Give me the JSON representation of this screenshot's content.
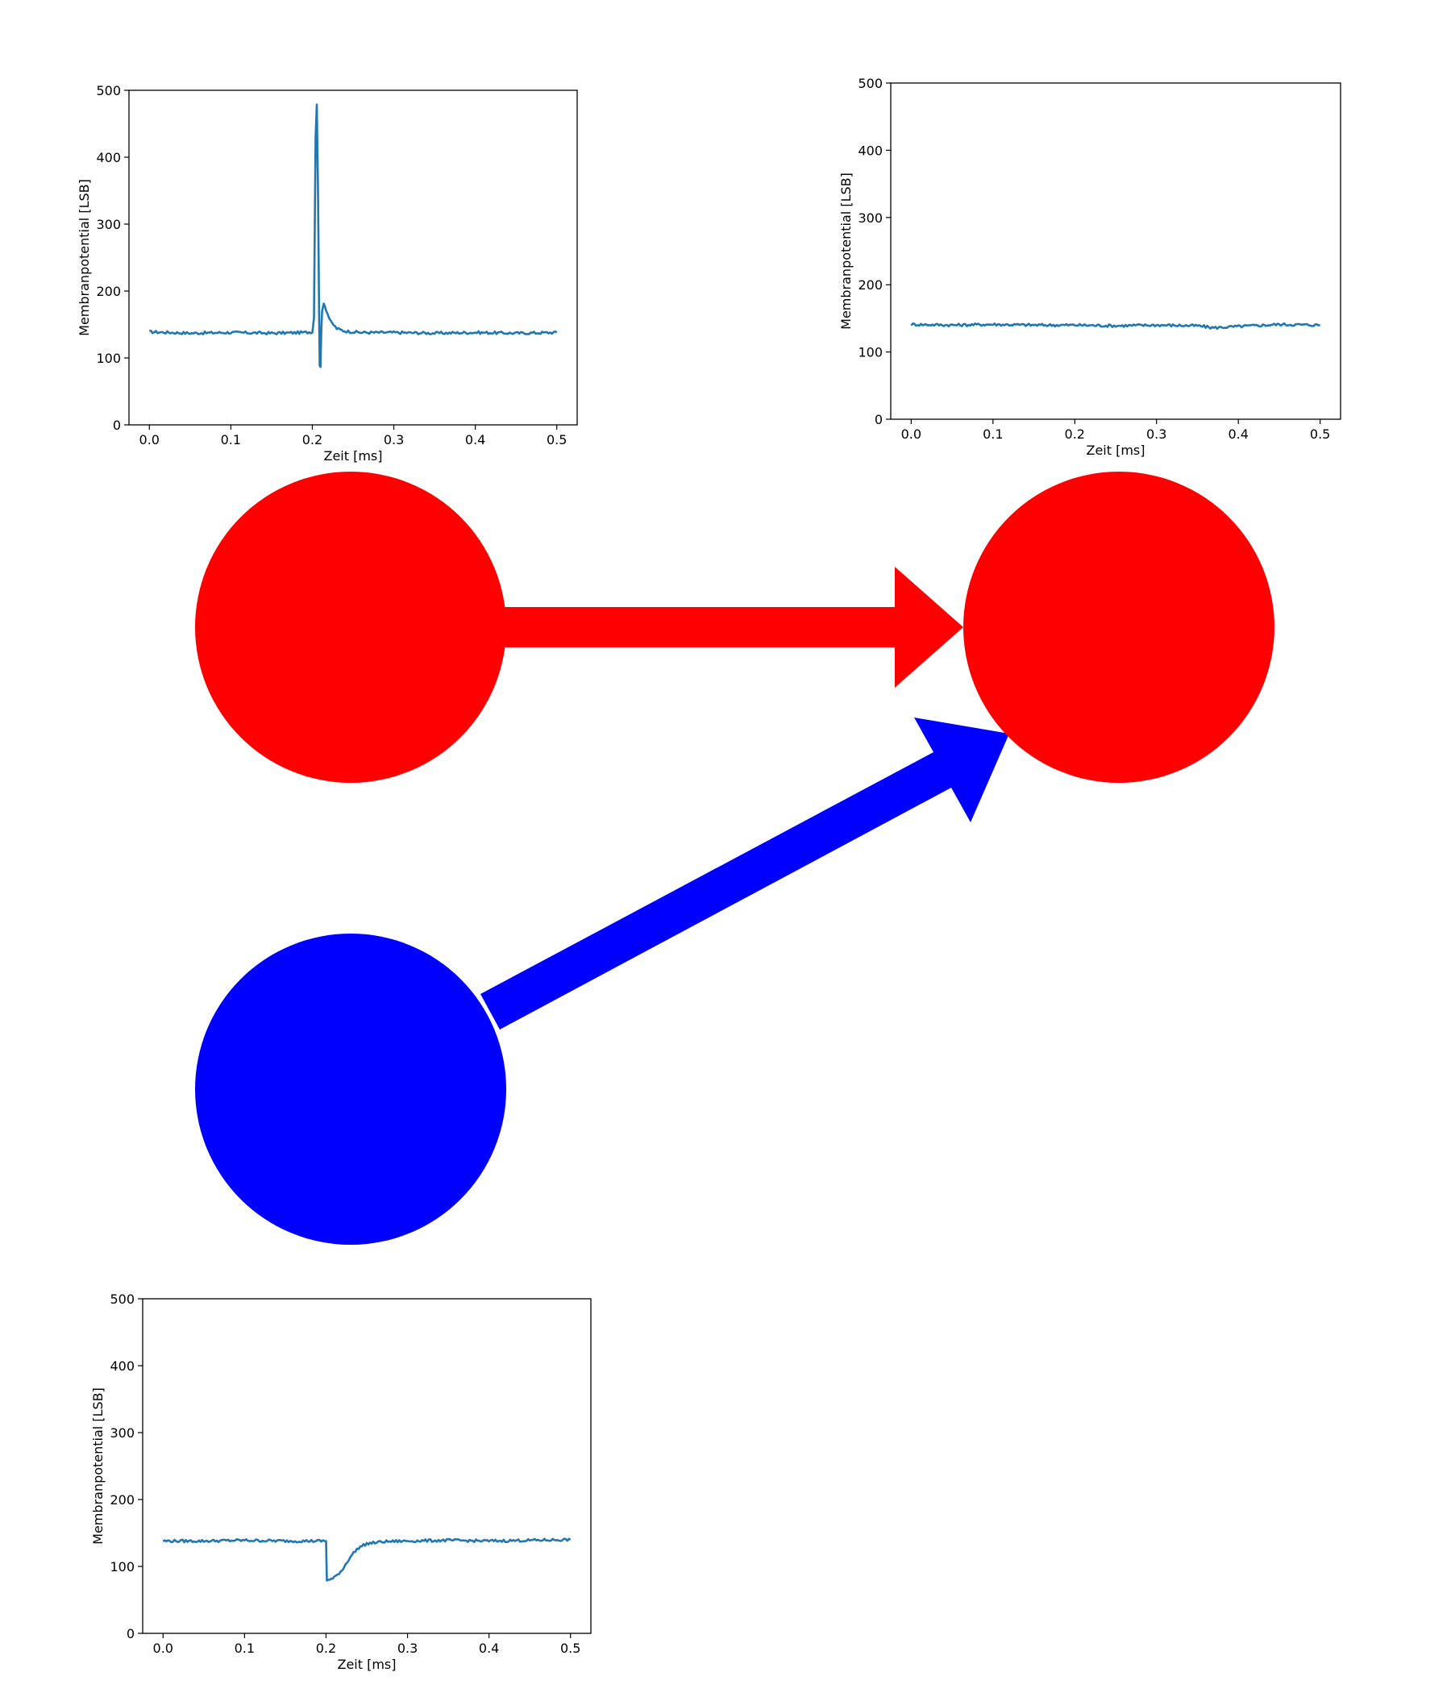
{
  "colors": {
    "excitatory": "#ff0000",
    "inhibitory": "#0000ff",
    "trace": "#1f77b4",
    "axis": "#000000"
  },
  "diagram": {
    "nodes": [
      {
        "id": "excitatory-presynaptic-neuron",
        "color": "#ff0000"
      },
      {
        "id": "postsynaptic-neuron",
        "color": "#ff0000"
      },
      {
        "id": "inhibitory-presynaptic-neuron",
        "color": "#0000ff"
      }
    ],
    "edges": [
      {
        "id": "excitatory-synapse-arrow",
        "from": "excitatory-presynaptic-neuron",
        "to": "postsynaptic-neuron",
        "color": "#ff0000"
      },
      {
        "id": "inhibitory-synapse-arrow",
        "from": "inhibitory-presynaptic-neuron",
        "to": "postsynaptic-neuron",
        "color": "#0000ff"
      }
    ]
  },
  "chart_data": [
    {
      "id": "excitatory-neuron-trace",
      "type": "line",
      "xlabel": "Zeit [ms]",
      "ylabel": "Membranpotential [LSB]",
      "xlim": [
        -0.025,
        0.525
      ],
      "ylim": [
        0,
        500
      ],
      "xticks": [
        "0.0",
        "0.1",
        "0.2",
        "0.3",
        "0.4",
        "0.5"
      ],
      "yticks": [
        "0",
        "100",
        "200",
        "300",
        "400",
        "500"
      ],
      "series": [
        {
          "x": [
            0.0,
            0.05,
            0.1,
            0.15,
            0.19,
            0.2,
            0.202,
            0.203,
            0.204,
            0.2055,
            0.207,
            0.2085,
            0.209,
            0.21,
            0.211,
            0.212,
            0.214,
            0.217,
            0.222,
            0.23,
            0.24,
            0.26,
            0.3,
            0.35,
            0.4,
            0.45,
            0.5
          ],
          "y": [
            139,
            137,
            138,
            137,
            138,
            139,
            160,
            300,
            430,
            480,
            350,
            150,
            90,
            88,
            140,
            170,
            183,
            172,
            155,
            144,
            140,
            138,
            138,
            137,
            138,
            137,
            138
          ]
        }
      ]
    },
    {
      "id": "postsynaptic-neuron-trace",
      "type": "line",
      "xlabel": "Zeit [ms]",
      "ylabel": "Membranpotential [LSB]",
      "xlim": [
        -0.025,
        0.525
      ],
      "ylim": [
        0,
        500
      ],
      "xticks": [
        "0.0",
        "0.1",
        "0.2",
        "0.3",
        "0.4",
        "0.5"
      ],
      "yticks": [
        "0",
        "100",
        "200",
        "300",
        "400",
        "500"
      ],
      "series": [
        {
          "x": [
            0.0,
            0.05,
            0.1,
            0.15,
            0.2,
            0.25,
            0.3,
            0.35,
            0.37,
            0.4,
            0.45,
            0.5
          ],
          "y": [
            141,
            140,
            141,
            140,
            140,
            139,
            140,
            139,
            136,
            138,
            141,
            140
          ]
        }
      ]
    },
    {
      "id": "inhibitory-neuron-trace",
      "type": "line",
      "xlabel": "Zeit [ms]",
      "ylabel": "Membranpotential [LSB]",
      "xlim": [
        -0.025,
        0.525
      ],
      "ylim": [
        0,
        500
      ],
      "xticks": [
        "0.0",
        "0.1",
        "0.2",
        "0.3",
        "0.4",
        "0.5"
      ],
      "yticks": [
        "0",
        "100",
        "200",
        "300",
        "400",
        "500"
      ],
      "series": [
        {
          "x": [
            0.0,
            0.05,
            0.1,
            0.15,
            0.19,
            0.2,
            0.201,
            0.205,
            0.21,
            0.22,
            0.23,
            0.24,
            0.25,
            0.27,
            0.3,
            0.35,
            0.4,
            0.45,
            0.5
          ],
          "y": [
            138,
            138,
            139,
            138,
            138,
            138,
            80,
            80,
            83,
            95,
            115,
            128,
            134,
            137,
            138,
            139,
            138,
            139,
            140
          ]
        }
      ]
    }
  ]
}
